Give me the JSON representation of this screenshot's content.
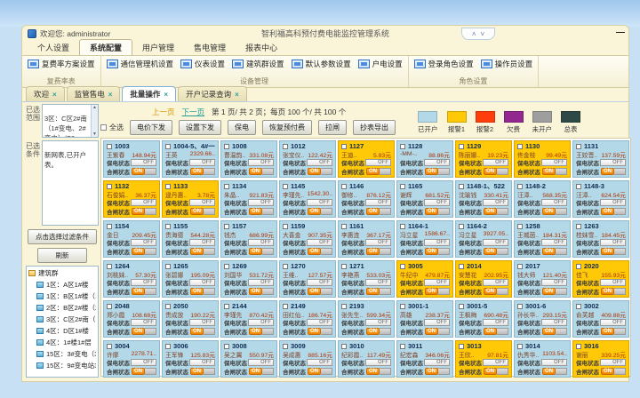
{
  "icons": {
    "close": "×",
    "scroll_up": "▲",
    "scroll_down": "▼",
    "minimize": "—",
    "ctrl_up": "˄",
    "ctrl_down": "˅"
  },
  "window": {
    "welcome": "欢迎您: administrator",
    "title": "智利福高科预付费电能监控管理系统"
  },
  "menu_tabs": [
    {
      "label": "个人设置",
      "active": false
    },
    {
      "label": "系统配置",
      "active": true
    },
    {
      "label": "用户管理",
      "active": false
    },
    {
      "label": "售电管理",
      "active": false
    },
    {
      "label": "报表中心",
      "active": false
    }
  ],
  "ribbon": {
    "groups": [
      {
        "caption": "复费率表",
        "buttons": [
          "复费率方案设置"
        ]
      },
      {
        "caption": "设备管理",
        "buttons": [
          "通信管理机设置",
          "仪表设置",
          "建筑群设置",
          "默认参数设置",
          "户电设置"
        ]
      },
      {
        "caption": "角色设置",
        "buttons": [
          "登录角色设置",
          "操作员设置"
        ]
      }
    ]
  },
  "doc_tabs": [
    {
      "label": "欢迎",
      "active": false
    },
    {
      "label": "监管售电",
      "active": false
    },
    {
      "label": "批量操作",
      "active": true
    },
    {
      "label": "开户记录查询",
      "active": false
    }
  ],
  "left_panel": {
    "range_label": "已选范围",
    "range_text": "3区：C区2#南\n（1#变电、2#\n变电）/C2..",
    "cond_label": "已选条件",
    "cond_text": "新网表,已开户表。",
    "filter_button": "点击选择过滤条件",
    "refresh_button": "刷新",
    "tree": {
      "root": "建筑群",
      "items": [
        "1区：A区1#楼",
        "1区：B区1#楼（1全变",
        "2区：B区2#楼（2全变",
        "3区：C区2#南（1#变电",
        "4区：D区1#楼",
        "4区：1#楼1#层（1区1",
        "15区：3#变电（3#全变",
        "15区：9#变电站3#全变"
      ]
    }
  },
  "toolbar": {
    "prev": "上一页",
    "next": "下一页",
    "page_info": "第 1 页/ 共 2 页；每页 100 个/ 共 100 个",
    "select_all": "全选",
    "buttons": [
      "电价下发",
      "设置下发",
      "保电",
      "恢复预付费",
      "拉闸",
      "抄表导出"
    ],
    "legend": [
      {
        "label": "已开户",
        "color": "#b3d9e8"
      },
      {
        "label": "报警1",
        "color": "#ffc908"
      },
      {
        "label": "报警2",
        "color": "#ff3e0c"
      },
      {
        "label": "欠费",
        "color": "#92278f"
      },
      {
        "label": "未开户",
        "color": "#9e9e9e"
      },
      {
        "label": "总表",
        "color": "#2f4a46"
      }
    ]
  },
  "cards": {
    "labels": {
      "protect": "保电状态",
      "switch": "合闸状态",
      "off": "OFF",
      "on": "ON"
    },
    "items": [
      {
        "id": "1003",
        "name": "王紫春",
        "amount": "148.94元",
        "type": "blue"
      },
      {
        "id": "1004-5、4#一",
        "name": "王英",
        "amount": "2329.66..",
        "type": "blue"
      },
      {
        "id": "1008",
        "name": "曹温韵..",
        "amount": "331.08元",
        "type": "blue"
      },
      {
        "id": "1012",
        "name": "张宝仪..",
        "amount": "122.42元",
        "type": "blue"
      },
      {
        "id": "1127",
        "name": "王迪..",
        "amount": "5.83元",
        "type": "yellow"
      },
      {
        "id": "1128",
        "name": "-MM-..",
        "amount": "88.86元",
        "type": "blue"
      },
      {
        "id": "1129",
        "name": "陈丽娜..",
        "amount": "19.23元",
        "type": "yellow"
      },
      {
        "id": "1130",
        "name": "佟金枝",
        "amount": "99.49元",
        "type": "yellow"
      },
      {
        "id": "1131",
        "name": "王姣晋..",
        "amount": "137.59元",
        "type": "blue"
      },
      {
        "id": "1132",
        "name": "石俊娟..",
        "amount": "36.37元",
        "type": "yellow"
      },
      {
        "id": "1133",
        "name": "逯丹惠..",
        "amount": "3.78元",
        "type": "yellow"
      },
      {
        "id": "1134",
        "name": "朱晶..",
        "amount": "921.83元",
        "type": "blue"
      },
      {
        "id": "1145",
        "name": "李瑾先..",
        "amount": "1542.30..",
        "type": "blue"
      },
      {
        "id": "1146",
        "name": "御修..",
        "amount": "876.12元",
        "type": "blue"
      },
      {
        "id": "1165",
        "name": "谢辉",
        "amount": "681.52元",
        "type": "blue"
      },
      {
        "id": "1148-1、522",
        "name": "沈瑜钱",
        "amount": "330.41元",
        "type": "blue"
      },
      {
        "id": "1148-2",
        "name": "汪漳..",
        "amount": "568.35元",
        "type": "blue"
      },
      {
        "id": "1148-3",
        "name": "汪漳..",
        "amount": "624.54元",
        "type": "blue"
      },
      {
        "id": "1154",
        "name": "金日",
        "amount": "209.45元",
        "type": "blue"
      },
      {
        "id": "1155",
        "name": "贵海德",
        "amount": "544.28元",
        "type": "blue"
      },
      {
        "id": "1157",
        "name": "钱杰",
        "amount": "686.99元",
        "type": "blue"
      },
      {
        "id": "1159",
        "name": "大喜金",
        "amount": "907.35元",
        "type": "blue"
      },
      {
        "id": "1161",
        "name": "李惠连",
        "amount": "367.17元",
        "type": "blue"
      },
      {
        "id": "1164-1",
        "name": "冯立星",
        "amount": "1586.67..",
        "type": "blue"
      },
      {
        "id": "1164-2",
        "name": "冯立星",
        "amount": "3927.05..",
        "type": "blue"
      },
      {
        "id": "1258",
        "name": "王城茵..",
        "amount": "184.31元",
        "type": "blue"
      },
      {
        "id": "1263",
        "name": "桂妹雪..",
        "amount": "184.45元",
        "type": "blue"
      },
      {
        "id": "1264",
        "name": "刘桃妹..",
        "amount": "57.30元",
        "type": "blue"
      },
      {
        "id": "1265",
        "name": "张碧娜",
        "amount": "195.09元",
        "type": "blue"
      },
      {
        "id": "1269",
        "name": "刘国华",
        "amount": "531.72元",
        "type": "blue"
      },
      {
        "id": "1270",
        "name": "王维..",
        "amount": "127.57元",
        "type": "blue"
      },
      {
        "id": "1271",
        "name": "李艳燕",
        "amount": "533.03元",
        "type": "blue"
      },
      {
        "id": "3005",
        "name": "牛纪中",
        "amount": "479.87元",
        "type": "yellow"
      },
      {
        "id": "2014",
        "name": "安慧花",
        "amount": "202.95元",
        "type": "yellow"
      },
      {
        "id": "2017",
        "name": "钱大师",
        "amount": "121.40元",
        "type": "blue"
      },
      {
        "id": "2020",
        "name": "佳飞",
        "amount": "155.93元",
        "type": "yellow"
      },
      {
        "id": "2048",
        "name": "郑小霞",
        "amount": "108.68元",
        "type": "blue"
      },
      {
        "id": "2050",
        "name": "贵成放",
        "amount": "190.22元",
        "type": "blue"
      },
      {
        "id": "2144",
        "name": "李瑾先",
        "amount": "870.42元",
        "type": "blue"
      },
      {
        "id": "2149",
        "name": "田红仙..",
        "amount": "186.74元",
        "type": "blue"
      },
      {
        "id": "2193",
        "name": "张先生..",
        "amount": "599.34元",
        "type": "blue"
      },
      {
        "id": "3001-1",
        "name": "高雄",
        "amount": "238.37元",
        "type": "blue"
      },
      {
        "id": "3001-5",
        "name": "王枫梅",
        "amount": "690.48元",
        "type": "blue"
      },
      {
        "id": "3001-6",
        "name": "孙长华..",
        "amount": "293.15元",
        "type": "blue"
      },
      {
        "id": "3002",
        "name": "俞芙越",
        "amount": "409.88元",
        "type": "blue"
      },
      {
        "id": "3004",
        "name": "许摩",
        "amount": "2278.71..",
        "type": "blue"
      },
      {
        "id": "3006",
        "name": "王军锋",
        "amount": "125.83元",
        "type": "blue"
      },
      {
        "id": "3008",
        "name": "吴之翼",
        "amount": "550.97元",
        "type": "blue"
      },
      {
        "id": "3009",
        "name": "吴成惠",
        "amount": "885.16元",
        "type": "blue"
      },
      {
        "id": "3010",
        "name": "纪彩霞..",
        "amount": "117.49元",
        "type": "blue"
      },
      {
        "id": "3011",
        "name": "纪宏森",
        "amount": "346.06元",
        "type": "blue"
      },
      {
        "id": "3013",
        "name": "王欣..",
        "amount": "97.81元",
        "type": "yellow"
      },
      {
        "id": "3014",
        "name": "仇秀华..",
        "amount": "1103.54..",
        "type": "blue"
      },
      {
        "id": "3016",
        "name": "谢丽",
        "amount": "339.25元",
        "type": "yellow"
      }
    ]
  }
}
